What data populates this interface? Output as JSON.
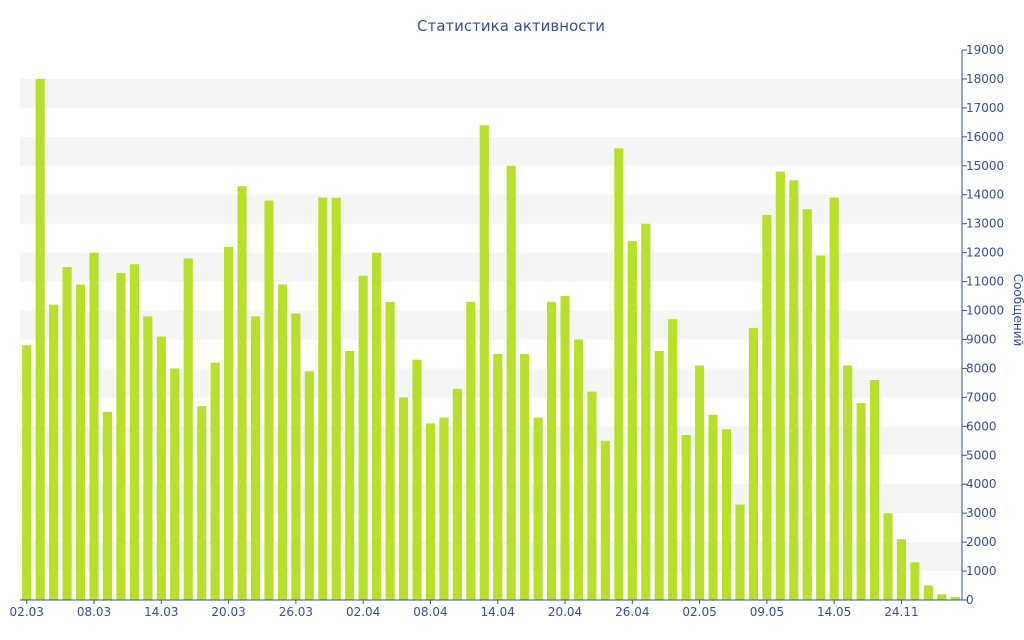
{
  "chart_data": {
    "type": "bar",
    "title": "Статистика активности",
    "ylabel": "Сообщений",
    "xlabel": "",
    "ylim": [
      0,
      19000
    ],
    "y_ticks": [
      0,
      1000,
      2000,
      3000,
      4000,
      5000,
      6000,
      7000,
      8000,
      9000,
      10000,
      11000,
      12000,
      13000,
      14000,
      15000,
      16000,
      17000,
      18000,
      19000
    ],
    "x_tick_labels": [
      {
        "label": "02.03",
        "index": 0
      },
      {
        "label": "08.03",
        "index": 5
      },
      {
        "label": "14.03",
        "index": 10
      },
      {
        "label": "20.03",
        "index": 15
      },
      {
        "label": "26.03",
        "index": 20
      },
      {
        "label": "02.04",
        "index": 25
      },
      {
        "label": "08.04",
        "index": 30
      },
      {
        "label": "14.04",
        "index": 35
      },
      {
        "label": "20.04",
        "index": 40
      },
      {
        "label": "26.04",
        "index": 45
      },
      {
        "label": "02.05",
        "index": 50
      },
      {
        "label": "09.05",
        "index": 55
      },
      {
        "label": "14.05",
        "index": 60
      },
      {
        "label": "24.11",
        "index": 65
      }
    ],
    "values": [
      8800,
      18000,
      10200,
      11500,
      10900,
      12000,
      6500,
      11300,
      11600,
      9800,
      9100,
      8000,
      11800,
      6700,
      8200,
      12200,
      14300,
      9800,
      13800,
      10900,
      9900,
      7900,
      13900,
      13900,
      8600,
      11200,
      12000,
      10300,
      7000,
      8300,
      6100,
      6300,
      7300,
      10300,
      16400,
      8500,
      15000,
      8500,
      6300,
      10300,
      10500,
      9000,
      7200,
      5500,
      15600,
      12400,
      13000,
      8600,
      9700,
      5700,
      8100,
      6400,
      5900,
      3300,
      9400,
      13300,
      14800,
      14500,
      13500,
      11900,
      13900,
      8100,
      6800,
      7600,
      3000,
      2100,
      1300,
      500,
      200,
      100
    ],
    "bar_color": "#b8e02b",
    "band_color": "#f5f5f5",
    "text_color": "#3a4f8f",
    "axis_color": "#3a4f8f",
    "grid": true,
    "y_axis_side": "right"
  }
}
